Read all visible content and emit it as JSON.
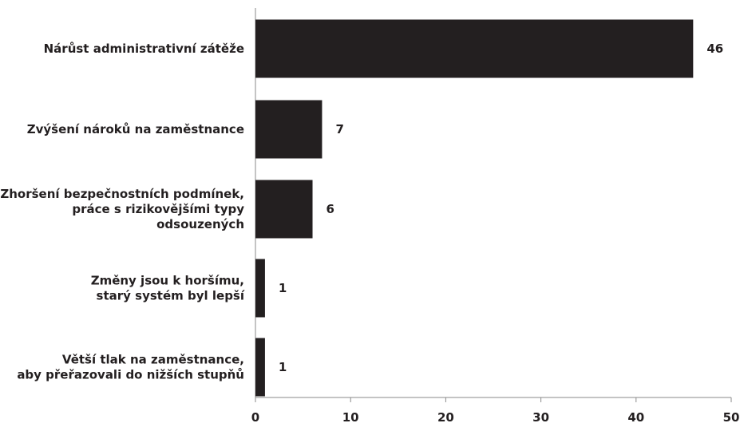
{
  "chart_data": {
    "type": "bar",
    "orientation": "horizontal",
    "title": "",
    "xlabel": "",
    "ylabel": "",
    "categories": [
      [
        "Nárůst administrativní zátěže"
      ],
      [
        "Zvýšení nároků na zaměstnance"
      ],
      [
        "Zhoršení bezpečnostních podmínek,",
        "práce s rizikovějšími typy",
        "odsouzených"
      ],
      [
        "Změny jsou k horšímu,",
        "starý systém byl lepší"
      ],
      [
        "Větší tlak na zaměstnance,",
        "aby přeřazovali do nižších stupňů"
      ]
    ],
    "values": [
      46,
      7,
      6,
      1,
      1
    ],
    "value_labels": [
      "46",
      "7",
      "6",
      "1",
      "1"
    ],
    "xlim": [
      0,
      50
    ],
    "x_ticks": [
      0,
      10,
      20,
      30,
      40,
      50
    ],
    "grid": false,
    "legend": "none",
    "bar_color": "#231f20",
    "axis_color": "#8a8a8a"
  }
}
